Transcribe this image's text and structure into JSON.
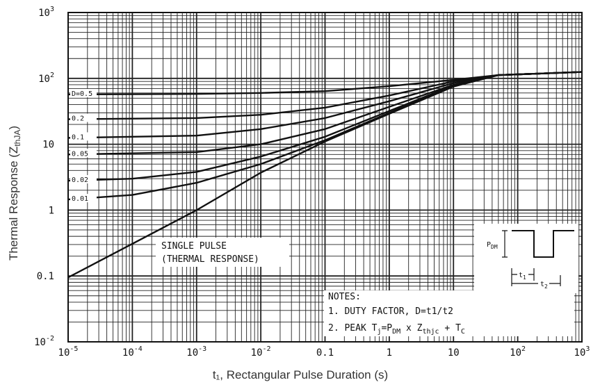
{
  "chart_data": {
    "type": "line",
    "title": "",
    "xlabel": "t₁, Rectangular Pulse Duration (s)",
    "ylabel": "Thermal Response (Z",
    "ylabel_sub": "thJA",
    "ylabel_close": ")",
    "x_scale": "log",
    "y_scale": "log",
    "xlim": [
      1e-05,
      1000
    ],
    "ylim": [
      0.01,
      1000
    ],
    "grid": true,
    "x_ticks": [
      {
        "value": 1e-05,
        "base": "10",
        "exp": "-5",
        "text": ""
      },
      {
        "value": 0.0001,
        "base": "10",
        "exp": "-4",
        "text": ""
      },
      {
        "value": 0.001,
        "base": "10",
        "exp": "-3",
        "text": ""
      },
      {
        "value": 0.01,
        "base": "10",
        "exp": "-2",
        "text": ""
      },
      {
        "value": 0.1,
        "base": "",
        "exp": "",
        "text": "0.1"
      },
      {
        "value": 1,
        "base": "",
        "exp": "",
        "text": "1"
      },
      {
        "value": 10,
        "base": "",
        "exp": "",
        "text": "10"
      },
      {
        "value": 100,
        "base": "10",
        "exp": "2",
        "text": ""
      },
      {
        "value": 1000,
        "base": "10",
        "exp": "3",
        "text": ""
      }
    ],
    "y_ticks": [
      {
        "value": 0.01,
        "base": "10",
        "exp": "-2",
        "text": ""
      },
      {
        "value": 0.1,
        "base": "",
        "exp": "",
        "text": "0.1"
      },
      {
        "value": 1,
        "base": "",
        "exp": "",
        "text": "1"
      },
      {
        "value": 10,
        "base": "",
        "exp": "",
        "text": "10"
      },
      {
        "value": 100,
        "base": "10",
        "exp": "2",
        "text": ""
      },
      {
        "value": 1000,
        "base": "10",
        "exp": "3",
        "text": ""
      }
    ],
    "series": [
      {
        "name": "D=0.5",
        "label": "D=0.5",
        "x": [
          1e-05,
          0.001,
          0.01,
          0.1,
          1,
          10,
          50,
          1000
        ],
        "y": [
          57,
          58,
          60,
          64,
          76,
          95,
          112,
          125
        ]
      },
      {
        "name": "0.2",
        "label": "0.2",
        "x": [
          1e-05,
          0.001,
          0.01,
          0.1,
          1,
          10,
          50,
          1000
        ],
        "y": [
          24,
          25,
          28,
          36,
          55,
          90,
          112,
          125
        ]
      },
      {
        "name": "0.1",
        "label": "0.1",
        "x": [
          1e-05,
          0.001,
          0.01,
          0.1,
          1,
          10,
          50,
          1000
        ],
        "y": [
          12.5,
          13.5,
          17,
          25,
          45,
          85,
          112,
          125
        ]
      },
      {
        "name": "0.05",
        "label": "0.05",
        "x": [
          1e-05,
          0.001,
          0.01,
          0.1,
          1,
          10,
          50,
          1000
        ],
        "y": [
          7,
          7.6,
          10,
          17,
          37,
          80,
          112,
          125
        ]
      },
      {
        "name": "0.02",
        "label": "0.02",
        "x": [
          1e-05,
          0.0001,
          0.001,
          0.01,
          0.1,
          1,
          10,
          50,
          1000
        ],
        "y": [
          2.8,
          3.0,
          3.8,
          6.5,
          13,
          32,
          78,
          112,
          125
        ]
      },
      {
        "name": "0.01",
        "label": "0.01",
        "x": [
          1e-05,
          0.0001,
          0.001,
          0.01,
          0.1,
          1,
          10,
          50,
          1000
        ],
        "y": [
          1.45,
          1.7,
          2.6,
          5.0,
          11.5,
          30,
          76,
          112,
          125
        ]
      },
      {
        "name": "SINGLE PULSE (THERMAL RESPONSE)",
        "label": "",
        "x": [
          1e-05,
          0.001,
          0.01,
          0.1,
          1,
          10,
          50,
          1000
        ],
        "y": [
          0.095,
          1.0,
          3.7,
          11,
          29,
          75,
          112,
          125
        ]
      }
    ],
    "annotations": {
      "single_pulse_line1": "SINGLE PULSE",
      "single_pulse_line2": "(THERMAL RESPONSE)",
      "notes_title": "NOTES:",
      "note1": "1. DUTY FACTOR, D=t1/t2",
      "note2_prefix": "2. PEAK T",
      "note2_tsub": "j",
      "note2_eq": "=P",
      "note2_psub": "DM",
      "note2_x": " x Z",
      "note2_zsub": "thjc",
      "note2_plus": " + T",
      "note2_csub": "C",
      "inset_pdm": "P",
      "inset_pdm_sub": "DM",
      "inset_t1": "t",
      "inset_t1_sub": "1",
      "inset_t2": "t",
      "inset_t2_sub": "2"
    }
  }
}
